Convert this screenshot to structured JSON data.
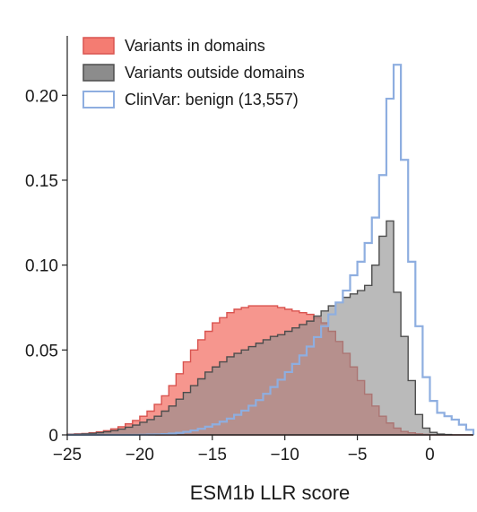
{
  "chart_data": {
    "type": "histogram",
    "xlabel": "ESM1b LLR score",
    "ylabel": "",
    "xlim": [
      -25,
      3
    ],
    "ylim": [
      0,
      0.235
    ],
    "xticks": [
      -25,
      -20,
      -15,
      -10,
      -5,
      0
    ],
    "xtick_labels": [
      "−25",
      "−20",
      "−15",
      "−10",
      "−5",
      "0"
    ],
    "yticks": [
      0,
      0.05,
      0.1,
      0.15,
      0.2
    ],
    "ytick_labels": [
      "0",
      "0.05",
      "0.10",
      "0.15",
      "0.20"
    ],
    "grid": false,
    "legend_position": "top-left",
    "bin_edges": [
      -25,
      -24.5,
      -24,
      -23.5,
      -23,
      -22.5,
      -22,
      -21.5,
      -21,
      -20.5,
      -20,
      -19.5,
      -19,
      -18.5,
      -18,
      -17.5,
      -17,
      -16.5,
      -16,
      -15.5,
      -15,
      -14.5,
      -14,
      -13.5,
      -13,
      -12.5,
      -12,
      -11.5,
      -11,
      -10.5,
      -10,
      -9.5,
      -9,
      -8.5,
      -8,
      -7.5,
      -7,
      -6.5,
      -6,
      -5.5,
      -5,
      -4.5,
      -4,
      -3.5,
      -3,
      -2.5,
      -2,
      -1.5,
      -1,
      -0.5,
      0,
      0.5,
      1,
      1.5,
      2,
      2.5,
      3
    ],
    "series": [
      {
        "name": "Variants in domains",
        "style": "filled",
        "fill": "#f47c72",
        "stroke": "#d9534f",
        "values": [
          0.0004,
          0.0006,
          0.0008,
          0.0012,
          0.0018,
          0.0025,
          0.0035,
          0.0048,
          0.0065,
          0.0085,
          0.011,
          0.014,
          0.018,
          0.023,
          0.029,
          0.036,
          0.043,
          0.05,
          0.056,
          0.061,
          0.066,
          0.069,
          0.072,
          0.074,
          0.075,
          0.076,
          0.076,
          0.076,
          0.076,
          0.075,
          0.074,
          0.073,
          0.072,
          0.071,
          0.069,
          0.066,
          0.061,
          0.055,
          0.048,
          0.04,
          0.032,
          0.024,
          0.017,
          0.011,
          0.007,
          0.004,
          0.002,
          0.0012,
          0.0006,
          0.0003,
          0.0001,
          0,
          0,
          0,
          0,
          0
        ]
      },
      {
        "name": "Variants outside domains",
        "style": "filled",
        "fill": "#8c8c8c",
        "stroke": "#4d4d4d",
        "values": [
          0.0003,
          0.0004,
          0.0006,
          0.0009,
          0.0013,
          0.0018,
          0.0025,
          0.0034,
          0.0045,
          0.0058,
          0.0074,
          0.009,
          0.011,
          0.014,
          0.017,
          0.021,
          0.025,
          0.029,
          0.033,
          0.037,
          0.04,
          0.043,
          0.046,
          0.048,
          0.05,
          0.052,
          0.054,
          0.056,
          0.058,
          0.059,
          0.061,
          0.063,
          0.065,
          0.067,
          0.07,
          0.073,
          0.076,
          0.078,
          0.081,
          0.083,
          0.085,
          0.088,
          0.1,
          0.117,
          0.126,
          0.084,
          0.058,
          0.032,
          0.012,
          0.004,
          0.0015,
          0.0005,
          0.0002,
          0,
          0,
          0
        ]
      },
      {
        "name": "ClinVar: benign (13,557)",
        "style": "step",
        "fill": "none",
        "stroke": "#8eaee0",
        "values": [
          0,
          0,
          0,
          0,
          0,
          0,
          0,
          0,
          0,
          0,
          0.0001,
          0.0002,
          0.0003,
          0.0005,
          0.0008,
          0.0012,
          0.0018,
          0.0026,
          0.0036,
          0.0048,
          0.0062,
          0.0078,
          0.0096,
          0.0118,
          0.0143,
          0.0172,
          0.0205,
          0.0242,
          0.0282,
          0.0325,
          0.037,
          0.0418,
          0.0468,
          0.052,
          0.0576,
          0.064,
          0.071,
          0.078,
          0.085,
          0.094,
          0.102,
          0.113,
          0.128,
          0.153,
          0.198,
          0.218,
          0.162,
          0.102,
          0.064,
          0.034,
          0.02,
          0.013,
          0.011,
          0.009,
          0.006,
          0.003
        ]
      }
    ]
  }
}
